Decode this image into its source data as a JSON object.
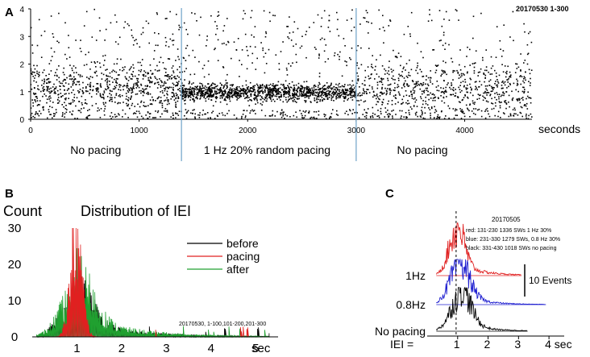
{
  "chart_data": [
    {
      "panel": "A",
      "type": "scatter",
      "title": "20170530 1-300",
      "xlabel": "seconds",
      "ylabel": "",
      "xlim": [
        0,
        4620
      ],
      "ylim": [
        0,
        4
      ],
      "x_ticks": [
        0,
        1000,
        2000,
        3000,
        4000
      ],
      "y_ticks": [
        0,
        1,
        2,
        3,
        4
      ],
      "dividers_x": [
        1390,
        3000
      ],
      "region_labels": [
        {
          "text": "No pacing",
          "x": 600
        },
        {
          "text": "1 Hz 20% random pacing",
          "x": 2180
        },
        {
          "text": "No pacing",
          "x": 3610
        }
      ],
      "segments": [
        {
          "name": "No pacing",
          "x_range": [
            0,
            1390
          ],
          "center": 1.1,
          "spread": 0.45
        },
        {
          "name": "1 Hz 20% random pacing",
          "x_range": [
            1390,
            3000
          ],
          "center": 0.97,
          "spread": 0.16
        },
        {
          "name": "No pacing",
          "x_range": [
            3000,
            4620
          ],
          "center": 1.1,
          "spread": 0.5
        }
      ],
      "marker_color": "#000000"
    },
    {
      "panel": "B",
      "type": "line",
      "title": "Distribution of IEI",
      "ylabel": "Count",
      "xlabel": "sec",
      "xlim": [
        0,
        5.5
      ],
      "ylim": [
        0,
        30
      ],
      "x_ticks": [
        1,
        2,
        3,
        4,
        5
      ],
      "y_ticks": [
        0,
        10,
        20,
        30
      ],
      "annotation": "20170530, 1-100,101-200,201-300",
      "series": [
        {
          "name": "before",
          "color": "#000000",
          "peak_x": 1.0,
          "peak": 10
        },
        {
          "name": "pacing",
          "color": "#e02020",
          "peak_x": 0.98,
          "peak": 29
        },
        {
          "name": "after",
          "color": "#20a030",
          "peak_x": 1.0,
          "peak": 13
        }
      ]
    },
    {
      "panel": "C",
      "type": "line",
      "title": "20170505",
      "xlabel": "IEI =",
      "x_tick_labels": [
        "1",
        "2",
        "3",
        "4 sec"
      ],
      "x_ticks": [
        1,
        2,
        3,
        4
      ],
      "xlim": [
        0,
        4.5
      ],
      "legend_lines": [
        "red: 131-230 1336 SWs 1 Hz 30%",
        "blue: 231-330 1279 SWs, 0.8 Hz 30%",
        "black: 331-430 1018 SWs  no pacing"
      ],
      "scale_bar": "10 Events",
      "traces": [
        {
          "label": "1Hz",
          "color": "#e02020",
          "peak_x": 0.95
        },
        {
          "label": "0.8Hz",
          "color": "#2020d0",
          "peak_x": 1.05
        },
        {
          "label": "No pacing",
          "color": "#000000",
          "peak_x": 1.1
        }
      ]
    }
  ],
  "panel_letters": [
    "A",
    "B",
    "C"
  ]
}
